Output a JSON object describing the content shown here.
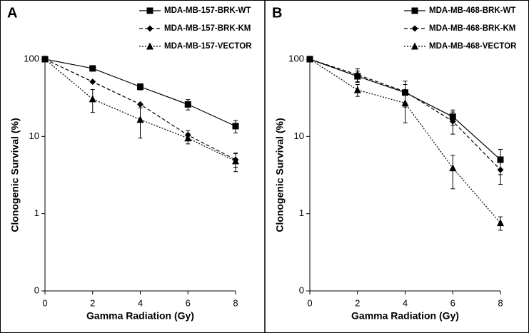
{
  "chart_data": [
    {
      "type": "line",
      "label": "A",
      "xlabel": "Gamma Radiation (Gy)",
      "ylabel": "Clonogenic Survival (%)",
      "x": [
        0,
        2,
        4,
        6,
        8
      ],
      "xlim": [
        0,
        8
      ],
      "xticks": [
        0,
        2,
        4,
        6,
        8
      ],
      "ylim": [
        0.1,
        100
      ],
      "log_y": true,
      "yticks": [
        {
          "value": 0.1,
          "label": "0"
        },
        1,
        10,
        100
      ],
      "series": [
        {
          "name": "MDA-MB-157-BRK-WT",
          "color": "#000000",
          "marker": "square",
          "line_style": "solid",
          "values": [
            100,
            76,
            44,
            26,
            13.6
          ],
          "errors": [
            0,
            5,
            4,
            4,
            2.5
          ]
        },
        {
          "name": "MDA-MB-157-BRK-KM",
          "color": "#000000",
          "marker": "diamond",
          "line_style": "dashed",
          "values": [
            100,
            51,
            26,
            10.4,
            5
          ],
          "errors": [
            0,
            0,
            0,
            1.5,
            1
          ]
        },
        {
          "name": "MDA-MB-157-VECTOR",
          "color": "#000000",
          "marker": "triangle",
          "line_style": "dotted",
          "values": [
            100,
            30.5,
            16.5,
            9.5,
            4.8
          ],
          "errors": [
            0,
            10,
            7,
            1.5,
            1.3
          ]
        }
      ]
    },
    {
      "type": "line",
      "label": "B",
      "xlabel": "Gamma Radiation (Gy)",
      "ylabel": "Clonogenic Survival (%)",
      "x": [
        0,
        2,
        4,
        6,
        8
      ],
      "xlim": [
        0,
        8
      ],
      "xticks": [
        0,
        2,
        4,
        6,
        8
      ],
      "ylim": [
        0.1,
        100
      ],
      "log_y": true,
      "yticks": [
        {
          "value": 0.1,
          "label": "0"
        },
        1,
        10,
        100
      ],
      "series": [
        {
          "name": "MDA-MB-468-BRK-WT",
          "color": "#000000",
          "marker": "square",
          "line_style": "solid",
          "values": [
            100,
            60,
            37,
            18,
            5
          ],
          "errors": [
            0,
            10,
            10,
            4,
            1.8
          ]
        },
        {
          "name": "MDA-MB-468-BRK-KM",
          "color": "#000000",
          "marker": "diamond",
          "line_style": "dashed",
          "values": [
            100,
            63,
            38,
            15.7,
            3.7
          ],
          "errors": [
            0,
            12,
            14,
            5,
            1.3
          ]
        },
        {
          "name": "MDA-MB-468-VECTOR",
          "color": "#000000",
          "marker": "triangle",
          "line_style": "dotted",
          "values": [
            100,
            40,
            27,
            3.9,
            0.76
          ],
          "errors": [
            0,
            7,
            12,
            1.8,
            0.15
          ]
        }
      ]
    }
  ]
}
